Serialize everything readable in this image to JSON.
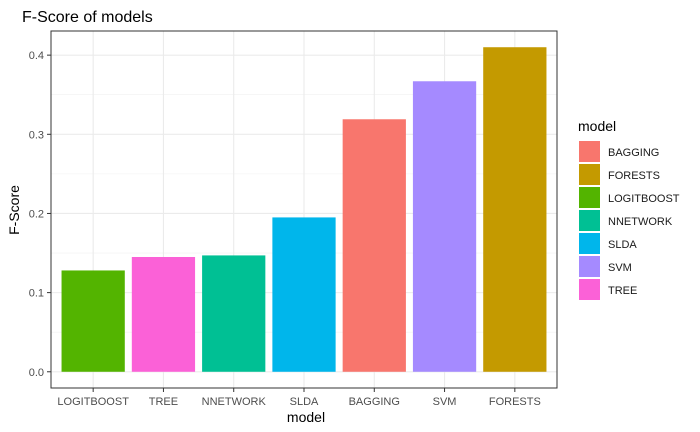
{
  "chart_data": {
    "type": "bar",
    "title": "F-Score of models",
    "xlabel": "model",
    "ylabel": "F-Score",
    "categories": [
      "LOGITBOOST",
      "TREE",
      "NNETWORK",
      "SLDA",
      "BAGGING",
      "SVM",
      "FORESTS"
    ],
    "values": [
      0.128,
      0.145,
      0.147,
      0.195,
      0.319,
      0.367,
      0.41
    ],
    "colors": [
      "#53B400",
      "#FB61D7",
      "#00C094",
      "#00B6EB",
      "#F8766D",
      "#A58AFF",
      "#C49A00"
    ],
    "y_ticks": [
      "0.0",
      "0.1",
      "0.2",
      "0.3",
      "0.4"
    ],
    "ylim": [
      -0.0205,
      0.4305
    ],
    "grid": true,
    "legend": {
      "title": "model",
      "position": "right",
      "items": [
        {
          "label": "BAGGING",
          "color": "#F8766D"
        },
        {
          "label": "FORESTS",
          "color": "#C49A00"
        },
        {
          "label": "LOGITBOOST",
          "color": "#53B400"
        },
        {
          "label": "NNETWORK",
          "color": "#00C094"
        },
        {
          "label": "SLDA",
          "color": "#00B6EB"
        },
        {
          "label": "SVM",
          "color": "#A58AFF"
        },
        {
          "label": "TREE",
          "color": "#FB61D7"
        }
      ]
    }
  }
}
